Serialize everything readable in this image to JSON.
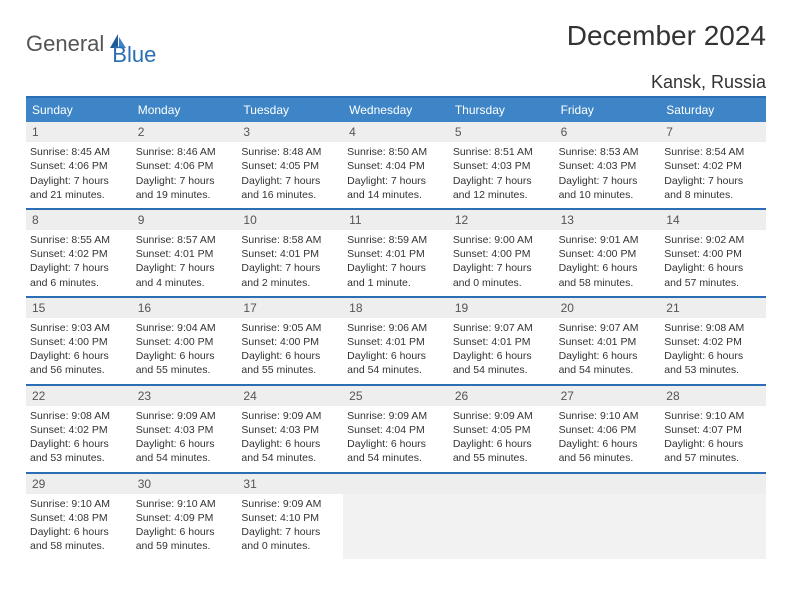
{
  "logo": {
    "text1": "General",
    "text2": "Blue"
  },
  "title": "December 2024",
  "location": "Kansk, Russia",
  "style": {
    "accent": "#3d85c6",
    "rule": "#2a6fb5",
    "daynum_bg": "#eeeeee",
    "empty_bg": "#f2f2f2",
    "text": "#333333",
    "header_text": "#ffffff",
    "month_fontsize": 28,
    "location_fontsize": 18,
    "dayheader_fontsize": 12,
    "cell_fontsize": 10.5
  },
  "day_headers": [
    "Sunday",
    "Monday",
    "Tuesday",
    "Wednesday",
    "Thursday",
    "Friday",
    "Saturday"
  ],
  "weeks": [
    [
      {
        "n": "1",
        "sr": "8:45 AM",
        "ss": "4:06 PM",
        "dl": "7 hours and 21 minutes."
      },
      {
        "n": "2",
        "sr": "8:46 AM",
        "ss": "4:06 PM",
        "dl": "7 hours and 19 minutes."
      },
      {
        "n": "3",
        "sr": "8:48 AM",
        "ss": "4:05 PM",
        "dl": "7 hours and 16 minutes."
      },
      {
        "n": "4",
        "sr": "8:50 AM",
        "ss": "4:04 PM",
        "dl": "7 hours and 14 minutes."
      },
      {
        "n": "5",
        "sr": "8:51 AM",
        "ss": "4:03 PM",
        "dl": "7 hours and 12 minutes."
      },
      {
        "n": "6",
        "sr": "8:53 AM",
        "ss": "4:03 PM",
        "dl": "7 hours and 10 minutes."
      },
      {
        "n": "7",
        "sr": "8:54 AM",
        "ss": "4:02 PM",
        "dl": "7 hours and 8 minutes."
      }
    ],
    [
      {
        "n": "8",
        "sr": "8:55 AM",
        "ss": "4:02 PM",
        "dl": "7 hours and 6 minutes."
      },
      {
        "n": "9",
        "sr": "8:57 AM",
        "ss": "4:01 PM",
        "dl": "7 hours and 4 minutes."
      },
      {
        "n": "10",
        "sr": "8:58 AM",
        "ss": "4:01 PM",
        "dl": "7 hours and 2 minutes."
      },
      {
        "n": "11",
        "sr": "8:59 AM",
        "ss": "4:01 PM",
        "dl": "7 hours and 1 minute."
      },
      {
        "n": "12",
        "sr": "9:00 AM",
        "ss": "4:00 PM",
        "dl": "7 hours and 0 minutes."
      },
      {
        "n": "13",
        "sr": "9:01 AM",
        "ss": "4:00 PM",
        "dl": "6 hours and 58 minutes."
      },
      {
        "n": "14",
        "sr": "9:02 AM",
        "ss": "4:00 PM",
        "dl": "6 hours and 57 minutes."
      }
    ],
    [
      {
        "n": "15",
        "sr": "9:03 AM",
        "ss": "4:00 PM",
        "dl": "6 hours and 56 minutes."
      },
      {
        "n": "16",
        "sr": "9:04 AM",
        "ss": "4:00 PM",
        "dl": "6 hours and 55 minutes."
      },
      {
        "n": "17",
        "sr": "9:05 AM",
        "ss": "4:00 PM",
        "dl": "6 hours and 55 minutes."
      },
      {
        "n": "18",
        "sr": "9:06 AM",
        "ss": "4:01 PM",
        "dl": "6 hours and 54 minutes."
      },
      {
        "n": "19",
        "sr": "9:07 AM",
        "ss": "4:01 PM",
        "dl": "6 hours and 54 minutes."
      },
      {
        "n": "20",
        "sr": "9:07 AM",
        "ss": "4:01 PM",
        "dl": "6 hours and 54 minutes."
      },
      {
        "n": "21",
        "sr": "9:08 AM",
        "ss": "4:02 PM",
        "dl": "6 hours and 53 minutes."
      }
    ],
    [
      {
        "n": "22",
        "sr": "9:08 AM",
        "ss": "4:02 PM",
        "dl": "6 hours and 53 minutes."
      },
      {
        "n": "23",
        "sr": "9:09 AM",
        "ss": "4:03 PM",
        "dl": "6 hours and 54 minutes."
      },
      {
        "n": "24",
        "sr": "9:09 AM",
        "ss": "4:03 PM",
        "dl": "6 hours and 54 minutes."
      },
      {
        "n": "25",
        "sr": "9:09 AM",
        "ss": "4:04 PM",
        "dl": "6 hours and 54 minutes."
      },
      {
        "n": "26",
        "sr": "9:09 AM",
        "ss": "4:05 PM",
        "dl": "6 hours and 55 minutes."
      },
      {
        "n": "27",
        "sr": "9:10 AM",
        "ss": "4:06 PM",
        "dl": "6 hours and 56 minutes."
      },
      {
        "n": "28",
        "sr": "9:10 AM",
        "ss": "4:07 PM",
        "dl": "6 hours and 57 minutes."
      }
    ],
    [
      {
        "n": "29",
        "sr": "9:10 AM",
        "ss": "4:08 PM",
        "dl": "6 hours and 58 minutes."
      },
      {
        "n": "30",
        "sr": "9:10 AM",
        "ss": "4:09 PM",
        "dl": "6 hours and 59 minutes."
      },
      {
        "n": "31",
        "sr": "9:09 AM",
        "ss": "4:10 PM",
        "dl": "7 hours and 0 minutes."
      },
      null,
      null,
      null,
      null
    ]
  ]
}
